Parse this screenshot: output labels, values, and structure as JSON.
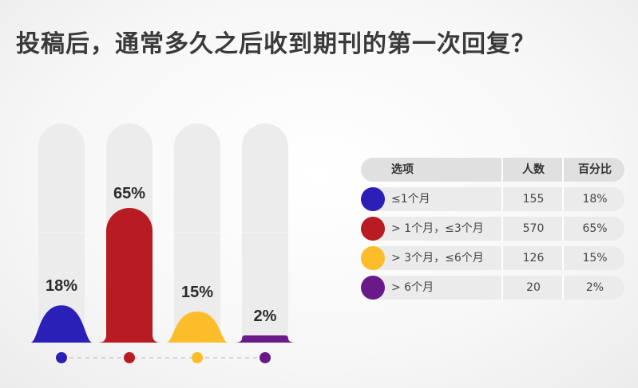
{
  "title": "投稿后，通常多久之后收到期刊的第一次回复？",
  "chart_data": {
    "type": "bar",
    "categories": [
      "≤1个月",
      "> 1个月，≤3个月",
      "> 3个月，≤6个月",
      "> 6个月"
    ],
    "values": [
      18,
      65,
      15,
      2
    ],
    "value_labels": [
      "18%",
      "65%",
      "15%",
      "2%"
    ],
    "colors": [
      "#2a20b8",
      "#b81c22",
      "#fdbd2a",
      "#6a1a88"
    ],
    "ylim": [
      0,
      100
    ],
    "grid": false,
    "legend": "bottom"
  },
  "table": {
    "headers": [
      "选项",
      "人数",
      "百分比"
    ],
    "rows": [
      {
        "option": "≤1个月",
        "count": "155",
        "percent": "18%",
        "color": "#2a20b8"
      },
      {
        "option": "> 1个月，≤3个月",
        "count": "570",
        "percent": "65%",
        "color": "#b81c22"
      },
      {
        "option": "> 3个月，≤6个月",
        "count": "126",
        "percent": "15%",
        "color": "#fdbd2a"
      },
      {
        "option": "> 6个月",
        "count": "20",
        "percent": "2%",
        "color": "#6a1a88"
      }
    ]
  }
}
